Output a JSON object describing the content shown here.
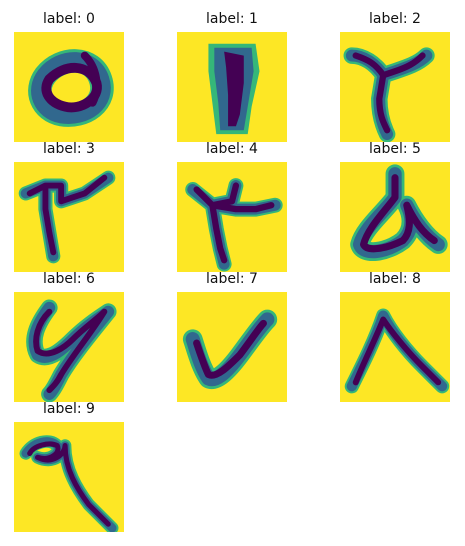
{
  "colors": {
    "background": "#fde725",
    "stroke_core": "#440154",
    "stroke_mid": "#31688e",
    "stroke_edge": "#35b779"
  },
  "items": [
    {
      "label": "label: 0"
    },
    {
      "label": "label: 1"
    },
    {
      "label": "label: 2"
    },
    {
      "label": "label: 3"
    },
    {
      "label": "label: 4"
    },
    {
      "label": "label: 5"
    },
    {
      "label": "label: 6"
    },
    {
      "label": "label: 7"
    },
    {
      "label": "label: 8"
    },
    {
      "label": "label: 9"
    }
  ]
}
